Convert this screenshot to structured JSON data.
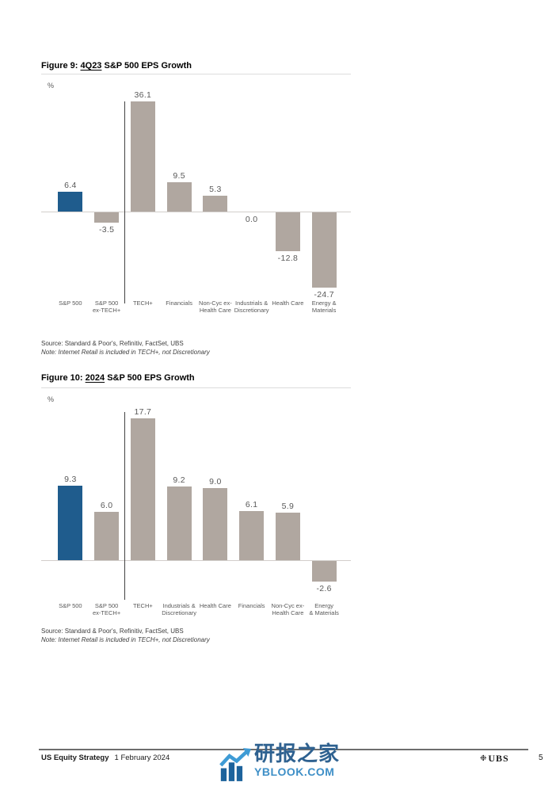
{
  "page": {
    "background": "#ffffff"
  },
  "figures": [
    {
      "label": "Figure 9:",
      "highlight": "4Q23",
      "title_rest": "S&P 500 EPS Growth",
      "unit": "%",
      "source": "Source: Standard & Poor's, Refinitiv, FactSet, UBS",
      "note": "Note: Internet Retail is included in TECH+, not Discretionary"
    },
    {
      "label": "Figure 10:",
      "highlight": "2024",
      "title_rest": "S&P 500 EPS Growth",
      "unit": "%",
      "source": "Source: Standard & Poor's, Refinitiv, FactSet, UBS",
      "note": "Note: Internet Retail is included in TECH+, not Discretionary"
    }
  ],
  "chart_data": [
    {
      "type": "bar",
      "title": "4Q23 S&P 500 EPS Growth",
      "unit": "%",
      "categories": [
        "S&P 500",
        "S&P 500 ex-TECH+",
        "TECH+",
        "Financials",
        "Non-Cyc ex-Health Care",
        "Industrials & Discretionary",
        "Health Care",
        "Energy & Materials"
      ],
      "category_lines": [
        [
          "S&P 500"
        ],
        [
          "S&P 500",
          "ex-TECH+"
        ],
        [
          "TECH+"
        ],
        [
          "Financials"
        ],
        [
          "Non-Cyc ex-",
          "Health Care"
        ],
        [
          "Industrials &",
          "Discretionary"
        ],
        [
          "Health Care"
        ],
        [
          "Energy &",
          "Materials"
        ]
      ],
      "values": [
        6.4,
        -3.5,
        36.1,
        9.5,
        5.3,
        0.0,
        -12.8,
        -24.7
      ],
      "highlight_index": 0,
      "separator_after_index": 1,
      "bar_color": "#b0a7a0",
      "highlight_color": "#1f5c8d",
      "ylim": [
        -30,
        40
      ],
      "grid": false,
      "legend": false,
      "zero_line": true,
      "value_labels": true
    },
    {
      "type": "bar",
      "title": "2024 S&P 500 EPS Growth",
      "unit": "%",
      "categories": [
        "S&P 500",
        "S&P 500 ex-TECH+",
        "TECH+",
        "Industrials & Discretionary",
        "Health Care",
        "Financials",
        "Non-Cyc ex-Health Care",
        "Energy & Materials"
      ],
      "category_lines": [
        [
          "S&P 500"
        ],
        [
          "S&P 500",
          "ex-TECH+"
        ],
        [
          "TECH+"
        ],
        [
          "Industrials &",
          "Discretionary"
        ],
        [
          "Health Care"
        ],
        [
          "Financials"
        ],
        [
          "Non-Cyc ex-",
          "Health Care"
        ],
        [
          "Energy",
          "& Materials"
        ]
      ],
      "values": [
        9.3,
        6.0,
        17.7,
        9.2,
        9.0,
        6.1,
        5.9,
        -2.6
      ],
      "highlight_index": 0,
      "separator_after_index": 1,
      "bar_color": "#b0a7a0",
      "highlight_color": "#1f5c8d",
      "ylim": [
        -5,
        20
      ],
      "grid": false,
      "legend": false,
      "zero_line": true,
      "value_labels": true
    }
  ],
  "footer": {
    "publication": "US Equity Strategy",
    "date": "1 February 2024",
    "brand": "UBS",
    "brand_symbol": "❉",
    "page_number": "5"
  },
  "watermark": {
    "name_cn": "研报之家",
    "site": "YBLOOK.COM",
    "color_dark": "#2e6190",
    "color_light": "#3e8fc7",
    "icon_bar_color": "#1d639c",
    "icon_arrow_color": "#3e9bd5"
  }
}
